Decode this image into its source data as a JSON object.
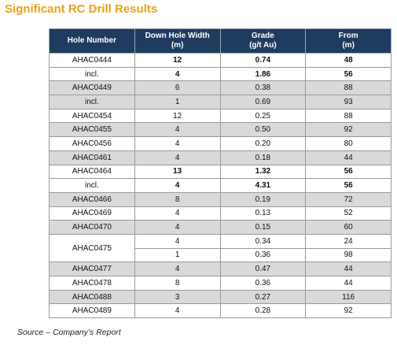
{
  "title": "Significant RC Drill Results",
  "table": {
    "headers": [
      [
        "Hole Number"
      ],
      [
        "Down Hole Width",
        "(m)"
      ],
      [
        "Grade",
        "(g/t Au)"
      ],
      [
        "From",
        "(m)"
      ]
    ],
    "rows": [
      {
        "hole": "AHAC0444",
        "width": "12",
        "grade": "0.74",
        "from": "48",
        "bold": true,
        "shaded": false
      },
      {
        "hole": "incl.",
        "width": "4",
        "grade": "1.86",
        "from": "56",
        "bold": true,
        "shaded": false
      },
      {
        "hole": "AHAC0449",
        "width": "6",
        "grade": "0.38",
        "from": "88",
        "bold": false,
        "shaded": true
      },
      {
        "hole": "incl.",
        "width": "1",
        "grade": "0.69",
        "from": "93",
        "bold": false,
        "shaded": true
      },
      {
        "hole": "AHAC0454",
        "width": "12",
        "grade": "0.25",
        "from": "88",
        "bold": false,
        "shaded": false
      },
      {
        "hole": "AHAC0455",
        "width": "4",
        "grade": "0.50",
        "from": "92",
        "bold": false,
        "shaded": true
      },
      {
        "hole": "AHAC0456",
        "width": "4",
        "grade": "0.20",
        "from": "80",
        "bold": false,
        "shaded": false
      },
      {
        "hole": "AHAC0461",
        "width": "4",
        "grade": "0.18",
        "from": "44",
        "bold": false,
        "shaded": true
      },
      {
        "hole": "AHAC0464",
        "width": "13",
        "grade": "1.32",
        "from": "56",
        "bold": true,
        "shaded": false
      },
      {
        "hole": "incl.",
        "width": "4",
        "grade": "4.31",
        "from": "56",
        "bold": true,
        "shaded": false
      },
      {
        "hole": "AHAC0466",
        "width": "8",
        "grade": "0.19",
        "from": "72",
        "bold": false,
        "shaded": true
      },
      {
        "hole": "AHAC0469",
        "width": "4",
        "grade": "0.13",
        "from": "52",
        "bold": false,
        "shaded": false
      },
      {
        "hole": "AHAC0470",
        "width": "4",
        "grade": "0.15",
        "from": "60",
        "bold": false,
        "shaded": true
      },
      {
        "hole": "AHAC0475",
        "span": 2,
        "width": "4",
        "grade": "0.34",
        "from": "24",
        "bold": false,
        "shaded": false
      },
      {
        "width": "1",
        "grade": "0.36",
        "from": "98",
        "bold": false,
        "shaded": false
      },
      {
        "hole": "AHAC0477",
        "width": "4",
        "grade": "0.47",
        "from": "44",
        "bold": false,
        "shaded": true
      },
      {
        "hole": "AHAC0478",
        "width": "8",
        "grade": "0.36",
        "from": "44",
        "bold": false,
        "shaded": false
      },
      {
        "hole": "AHAC0488",
        "width": "3",
        "grade": "0.27",
        "from": "116",
        "bold": false,
        "shaded": true
      },
      {
        "hole": "AHAC0489",
        "width": "4",
        "grade": "0.28",
        "from": "92",
        "bold": false,
        "shaded": false
      }
    ]
  },
  "source": "Source – Company’s Report"
}
